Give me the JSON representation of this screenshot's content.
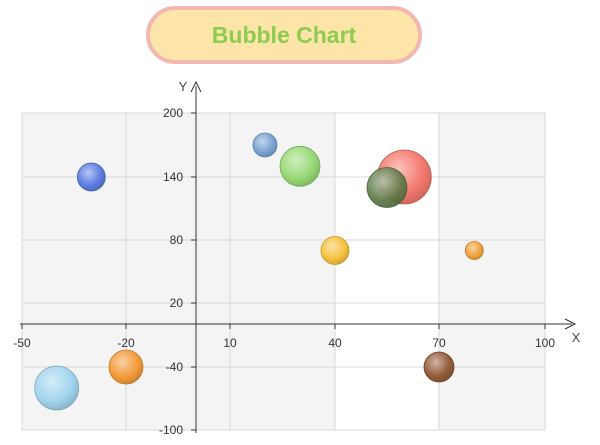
{
  "title": "Bubble Chart",
  "chart_data": {
    "type": "scatter",
    "subtype": "bubble",
    "title": "Bubble Chart",
    "xlabel": "X",
    "ylabel": "Y",
    "x_ticks": [
      "-50",
      "-20",
      "10",
      "40",
      "70",
      "100"
    ],
    "y_ticks": [
      "200",
      "140",
      "80",
      "20",
      "-40",
      "-100"
    ],
    "xlim": [
      -50,
      100
    ],
    "ylim": [
      -100,
      200
    ],
    "grid": true,
    "points": [
      {
        "x": -30,
        "y": 140,
        "size": 14,
        "color": "#4f73e0"
      },
      {
        "x": 20,
        "y": 170,
        "size": 12,
        "color": "#6f9ccf"
      },
      {
        "x": 30,
        "y": 150,
        "size": 20,
        "color": "#8fd66a"
      },
      {
        "x": 60,
        "y": 140,
        "size": 27,
        "color": "#f46d62"
      },
      {
        "x": 55,
        "y": 130,
        "size": 20,
        "color": "#5e7a46"
      },
      {
        "x": 40,
        "y": 70,
        "size": 14,
        "color": "#f5bd2e"
      },
      {
        "x": 80,
        "y": 70,
        "size": 9,
        "color": "#f29a2e"
      },
      {
        "x": -40,
        "y": -60,
        "size": 22,
        "color": "#9ad2ee"
      },
      {
        "x": -20,
        "y": -40,
        "size": 17,
        "color": "#f4922a"
      },
      {
        "x": 70,
        "y": -40,
        "size": 15,
        "color": "#8a4e2a"
      }
    ]
  }
}
